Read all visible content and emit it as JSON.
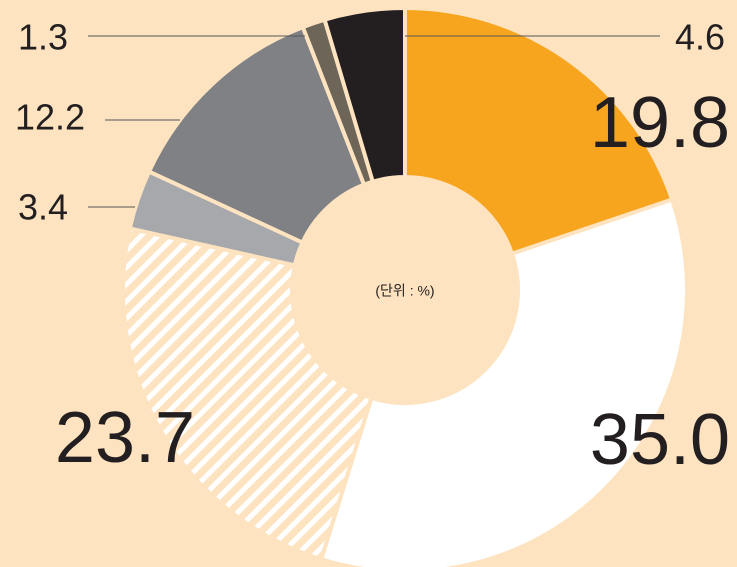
{
  "chart_data": {
    "type": "donut",
    "annotation": "(단위 : %)",
    "values": [
      19.8,
      35.0,
      23.7,
      3.4,
      12.2,
      1.3,
      4.6
    ],
    "value_labels": [
      "19.8",
      "35.0",
      "23.7",
      "3.4",
      "12.2",
      "1.3",
      "4.6"
    ],
    "colors": [
      "#f7a51e",
      "#ffffff",
      "#fde3c0",
      "#a7a8ab",
      "#808184",
      "#6d6557",
      "#231f20"
    ],
    "hatch": [
      false,
      false,
      true,
      false,
      false,
      false,
      false
    ]
  }
}
